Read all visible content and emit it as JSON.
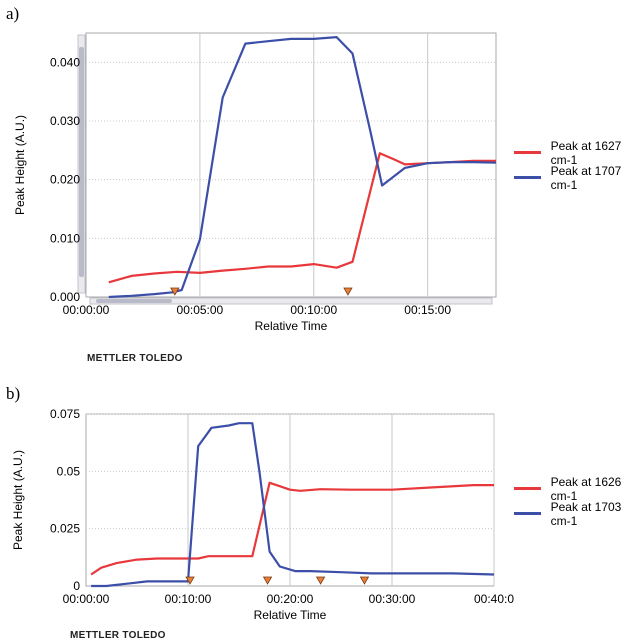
{
  "panels": [
    {
      "label": "a)",
      "brand": "METTLER TOLEDO",
      "chart_data": {
        "type": "line",
        "xlabel": "Relative Time",
        "ylabel": "Peak Height (A.U.)",
        "xlim": [
          0,
          18
        ],
        "ylim": [
          0,
          0.045
        ],
        "x_ticks": [
          0,
          5,
          10,
          15
        ],
        "x_tick_labels": [
          "00:00:00",
          "00:05:00",
          "00:10:00",
          "00:15:00"
        ],
        "y_ticks": [
          0,
          0.01,
          0.02,
          0.03,
          0.04
        ],
        "y_tick_labels": [
          "0.000",
          "0.010",
          "0.020",
          "0.030",
          "0.040"
        ],
        "grid": true,
        "legend_position": "right",
        "markers_x": [
          3.9,
          11.5
        ],
        "series": [
          {
            "name": "Peak at 1627 cm-1",
            "color": "#e8383b",
            "x": [
              1.0,
              2.0,
              3.0,
              4.0,
              5.0,
              6.0,
              7.0,
              8.0,
              9.0,
              10.0,
              11.0,
              11.7,
              12.9,
              13.5,
              14.0,
              15.0,
              16.0,
              17.0,
              18.0
            ],
            "y": [
              0.0025,
              0.0036,
              0.004,
              0.0043,
              0.0041,
              0.0045,
              0.0048,
              0.0052,
              0.0052,
              0.0056,
              0.005,
              0.006,
              0.0245,
              0.0235,
              0.0226,
              0.0228,
              0.023,
              0.0232,
              0.0232
            ]
          },
          {
            "name": "Peak at 1707 cm-1",
            "color": "#3c4fa8",
            "x": [
              1.0,
              2.0,
              3.0,
              3.8,
              4.2,
              5.0,
              6.0,
              7.0,
              8.0,
              9.0,
              10.0,
              11.0,
              11.7,
              12.5,
              13.0,
              14.0,
              15.0,
              16.0,
              17.0,
              18.0
            ],
            "y": [
              0.0,
              0.0002,
              0.0005,
              0.0008,
              0.0012,
              0.0098,
              0.034,
              0.0432,
              0.0436,
              0.044,
              0.044,
              0.0443,
              0.0415,
              0.028,
              0.019,
              0.022,
              0.0228,
              0.023,
              0.023,
              0.0229
            ]
          }
        ]
      }
    },
    {
      "label": "b)",
      "brand": "METTLER TOLEDO",
      "chart_data": {
        "type": "line",
        "xlabel": "Relative Time",
        "ylabel": "Peak Height (A.U.)",
        "xlim": [
          0,
          40
        ],
        "ylim": [
          0,
          0.075
        ],
        "x_ticks": [
          0,
          10,
          20,
          30,
          40
        ],
        "x_tick_labels": [
          "00:00:00",
          "00:10:00",
          "00:20:00",
          "00:30:00",
          "00:40:0"
        ],
        "y_ticks": [
          0,
          0.025,
          0.05,
          0.075
        ],
        "y_tick_labels": [
          "0",
          "0.025",
          "0.05",
          "0.075"
        ],
        "grid": true,
        "legend_position": "right",
        "markers_x": [
          10.2,
          17.8,
          23.0,
          27.3
        ],
        "series": [
          {
            "name": "Peak at 1626 cm-1",
            "color": "#e8383b",
            "x": [
              0.5,
              1.5,
              3.0,
              5.0,
              7.0,
              9.0,
              11.0,
              12.0,
              14.0,
              15.0,
              16.3,
              18.0,
              19.0,
              20.0,
              21.0,
              23.0,
              26.0,
              30.0,
              34.0,
              38.0,
              40.0
            ],
            "y": [
              0.005,
              0.008,
              0.01,
              0.0115,
              0.012,
              0.012,
              0.012,
              0.013,
              0.013,
              0.013,
              0.013,
              0.045,
              0.0435,
              0.042,
              0.0415,
              0.0422,
              0.042,
              0.042,
              0.043,
              0.044,
              0.044
            ]
          },
          {
            "name": "Peak at 1703 cm-1",
            "color": "#3c4fa8",
            "x": [
              0.5,
              2.0,
              4.0,
              6.0,
              8.0,
              10.0,
              11.0,
              12.3,
              14.0,
              15.0,
              16.3,
              17.0,
              18.0,
              19.0,
              20.5,
              22.0,
              25.0,
              28.0,
              32.0,
              36.0,
              40.0
            ],
            "y": [
              0.0,
              0.0,
              0.001,
              0.002,
              0.002,
              0.002,
              0.061,
              0.069,
              0.07,
              0.071,
              0.071,
              0.05,
              0.015,
              0.0085,
              0.0065,
              0.0065,
              0.006,
              0.0055,
              0.0055,
              0.0055,
              0.005
            ]
          }
        ]
      }
    }
  ]
}
